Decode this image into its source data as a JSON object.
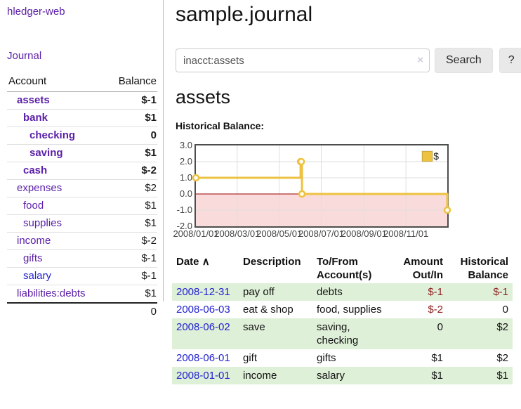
{
  "colors": {
    "link_purple": "#5a1ea8",
    "link_blue": "#2222d0",
    "negative_strong": "#8f1717",
    "negative_muted": "#bb7a7a",
    "register_stripe_green": "#dff0d8",
    "button_gray": "#e9e9e9"
  },
  "sidebar": {
    "app_title": "hledger-web",
    "journal_link": "Journal",
    "accounts_table": {
      "headers": {
        "account": "Account",
        "balance": "Balance"
      },
      "rows": [
        {
          "name": "assets",
          "balance": "$-1",
          "depth": 1,
          "matched": true
        },
        {
          "name": "bank",
          "balance": "$1",
          "depth": 2,
          "matched": true
        },
        {
          "name": "checking",
          "balance": "0",
          "depth": 3,
          "matched": true
        },
        {
          "name": "saving",
          "balance": "$1",
          "depth": 3,
          "matched": true
        },
        {
          "name": "cash",
          "balance": "$-2",
          "depth": 2,
          "matched": true
        },
        {
          "name": "expenses",
          "balance": "$2",
          "depth": 1,
          "matched": false
        },
        {
          "name": "food",
          "balance": "$1",
          "depth": 2,
          "matched": false
        },
        {
          "name": "supplies",
          "balance": "$1",
          "depth": 2,
          "matched": false
        },
        {
          "name": "income",
          "balance": "$-2",
          "depth": 1,
          "matched": false
        },
        {
          "name": "gifts",
          "balance": "$-1",
          "depth": 2,
          "matched": false
        },
        {
          "name": "salary",
          "balance": "$-1",
          "depth": 2,
          "matched": false,
          "link": "blue"
        },
        {
          "name": "liabilities:debts",
          "balance": "$1",
          "depth": 1,
          "matched": false
        }
      ],
      "total": "0"
    }
  },
  "main": {
    "title": "sample.journal",
    "search": {
      "value": "inacct:assets",
      "clear_icon": "×",
      "search_button": "Search",
      "help_button": "?"
    },
    "account_heading": "assets",
    "chart_label": "Historical Balance:",
    "register": {
      "headers": {
        "date": "Date",
        "sort_icon": "∧",
        "description": "Description",
        "accounts": "To/From\nAccount(s)",
        "amount": "Amount\nOut/In",
        "balance": "Historical\nBalance"
      },
      "rows": [
        {
          "date": "2008-12-31",
          "description": "pay off",
          "accounts": "debts",
          "amount": "$-1",
          "balance": "$-1"
        },
        {
          "date": "2008-06-03",
          "description": "eat & shop",
          "accounts": "food, supplies",
          "amount": "$-2",
          "balance": "0"
        },
        {
          "date": "2008-06-02",
          "description": "save",
          "accounts": "saving,\nchecking",
          "amount": "0",
          "balance": "$2"
        },
        {
          "date": "2008-06-01",
          "description": "gift",
          "accounts": "gifts",
          "amount": "$1",
          "balance": "$2"
        },
        {
          "date": "2008-01-01",
          "description": "income",
          "accounts": "salary",
          "amount": "$1",
          "balance": "$1"
        }
      ]
    }
  },
  "chart_data": {
    "type": "line",
    "step": true,
    "title": "Historical Balance:",
    "legend": [
      {
        "name": "$"
      }
    ],
    "legend_position": "top-right",
    "grid": true,
    "ylim": [
      -2,
      3
    ],
    "y_ticks": [
      "3.0",
      "2.0",
      "1.0",
      "0.0",
      "-1.0",
      "-2.0"
    ],
    "y_grid_values": [
      2,
      1,
      -1
    ],
    "x_range": [
      "2008-01-01",
      "2008-12-31"
    ],
    "x_ticks": [
      {
        "label": "2008/01/01",
        "date": "2008-01-01"
      },
      {
        "label": "2008/03/01",
        "date": "2008-03-01"
      },
      {
        "label": "2008/05/01",
        "date": "2008-05-01"
      },
      {
        "label": "2008/07/01",
        "date": "2008-07-01"
      },
      {
        "label": "2008/09/01",
        "date": "2008-09-01"
      },
      {
        "label": "2008/11/01",
        "date": "2008-11-01"
      }
    ],
    "x_grid_dates": [
      "2008-03-01",
      "2008-05-01",
      "2008-07-01",
      "2008-09-01",
      "2008-11-01"
    ],
    "series": [
      {
        "name": "$",
        "points": [
          {
            "date": "2008-01-01",
            "value": 1
          },
          {
            "date": "2008-06-01",
            "value": 2
          },
          {
            "date": "2008-06-02",
            "value": 2
          },
          {
            "date": "2008-06-03",
            "value": 0
          },
          {
            "date": "2008-12-31",
            "value": -1
          }
        ]
      }
    ],
    "colors": {
      "line": "#edc240",
      "marker_fill": "#fffdf3",
      "grid": "#dedede",
      "zero_line": "#990000",
      "negative_region_fill": "#fadbdb",
      "plot_border": "#4d4d4d"
    }
  }
}
